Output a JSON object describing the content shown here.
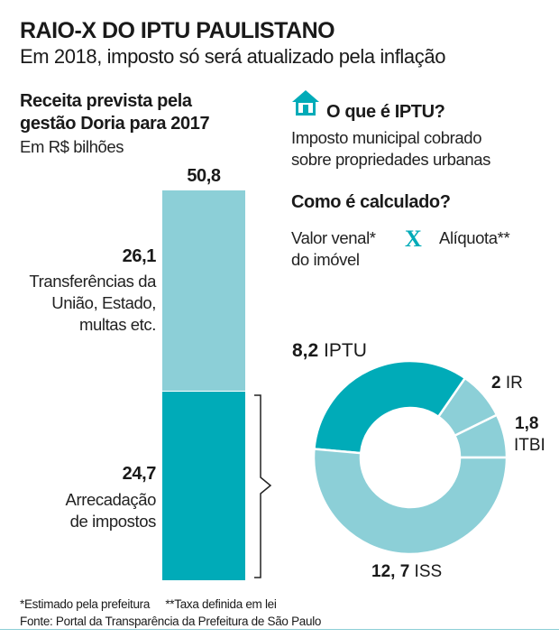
{
  "header": {
    "title": "RAIO-X DO IPTU PAULISTANO",
    "subtitle": "Em 2018, imposto só será atualizado pela inflação"
  },
  "left": {
    "heading_line1": "Receita prevista pela",
    "heading_line2": "gestão Doria para 2017",
    "unit": "Em R$ bilhões"
  },
  "right": {
    "what_heading": "O que é IPTU?",
    "what_line1": "Imposto municipal cobrado",
    "what_line2": "sobre propriedades urbanas",
    "how_heading": "Como é calculado?",
    "factor1_line1": "Valor venal*",
    "factor1_line2": "do imóvel",
    "times_symbol": "X",
    "factor2": "Alíquota**",
    "icon": "house-icon"
  },
  "colors": {
    "dark": "#00abb8",
    "light": "#8ccfd7"
  },
  "chart_data": [
    {
      "type": "bar",
      "stacked": true,
      "total_label": "50,8",
      "total": 50.8,
      "series": [
        {
          "value": 24.7,
          "value_label": "24,7",
          "label_line1": "Arrecadação",
          "label_line2": "de impostos",
          "color": "#00abb8"
        },
        {
          "value": 26.1,
          "value_label": "26,1",
          "label_line1": "Transferências da",
          "label_line2": "União, Estado,",
          "label_line3": "multas etc.",
          "color": "#8ccfd7"
        }
      ]
    },
    {
      "type": "pie",
      "donut": true,
      "slices": [
        {
          "name": "ITBI",
          "value": 1.8,
          "value_label": "1,8",
          "color": "#8ccfd7"
        },
        {
          "name": "IR",
          "value": 2,
          "value_label": "2",
          "color": "#8ccfd7"
        },
        {
          "name": "IPTU",
          "value": 8.2,
          "value_label": "8,2",
          "color": "#00abb8"
        },
        {
          "name": "ISS",
          "value": 12.7,
          "value_label": "12, 7",
          "color": "#8ccfd7"
        }
      ]
    }
  ],
  "footer": {
    "note": "*Estimado pela prefeitura     **Taxa definida em lei",
    "source": "Fonte: Portal da Transparência da Prefeitura de São Paulo"
  }
}
